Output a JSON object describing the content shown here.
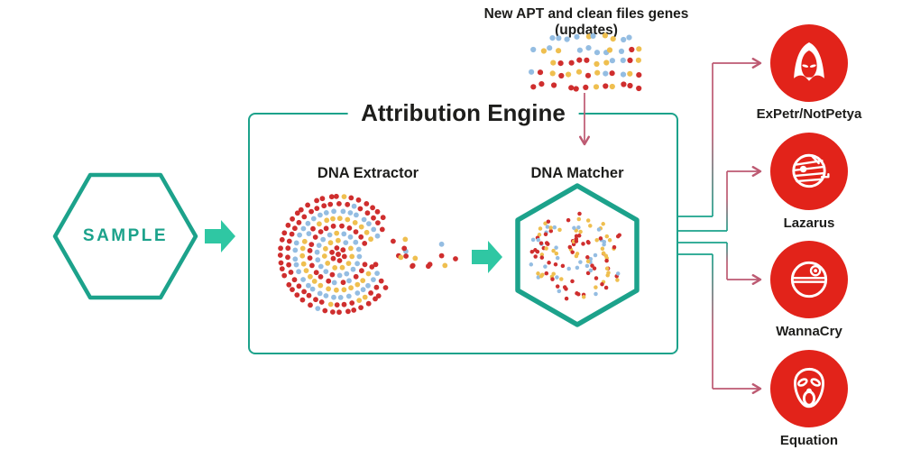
{
  "palette": {
    "teal": "#1ca28b",
    "teal_bright": "#2fc7a3",
    "pink": "#bd5a72",
    "red": "#e2231a",
    "dot_red": "#cf2e2e",
    "dot_yellow": "#efbf4f",
    "dot_blue": "#94bde2",
    "text": "#1d1d1b"
  },
  "top": {
    "label": "New APT and clean files genes (updates)"
  },
  "engine": {
    "title": "Attribution Engine",
    "extractor_label": "DNA Extractor",
    "matcher_label": "DNA Matcher"
  },
  "sample": {
    "label": "SAMPLE"
  },
  "outputs": [
    {
      "label": "ExPetr/NotPetya",
      "icon": "hooded-villain-icon"
    },
    {
      "label": "Lazarus",
      "icon": "mummy-icon"
    },
    {
      "label": "WannaCry",
      "icon": "death-star-icon"
    },
    {
      "label": "Equation",
      "icon": "scream-mask-icon"
    }
  ]
}
